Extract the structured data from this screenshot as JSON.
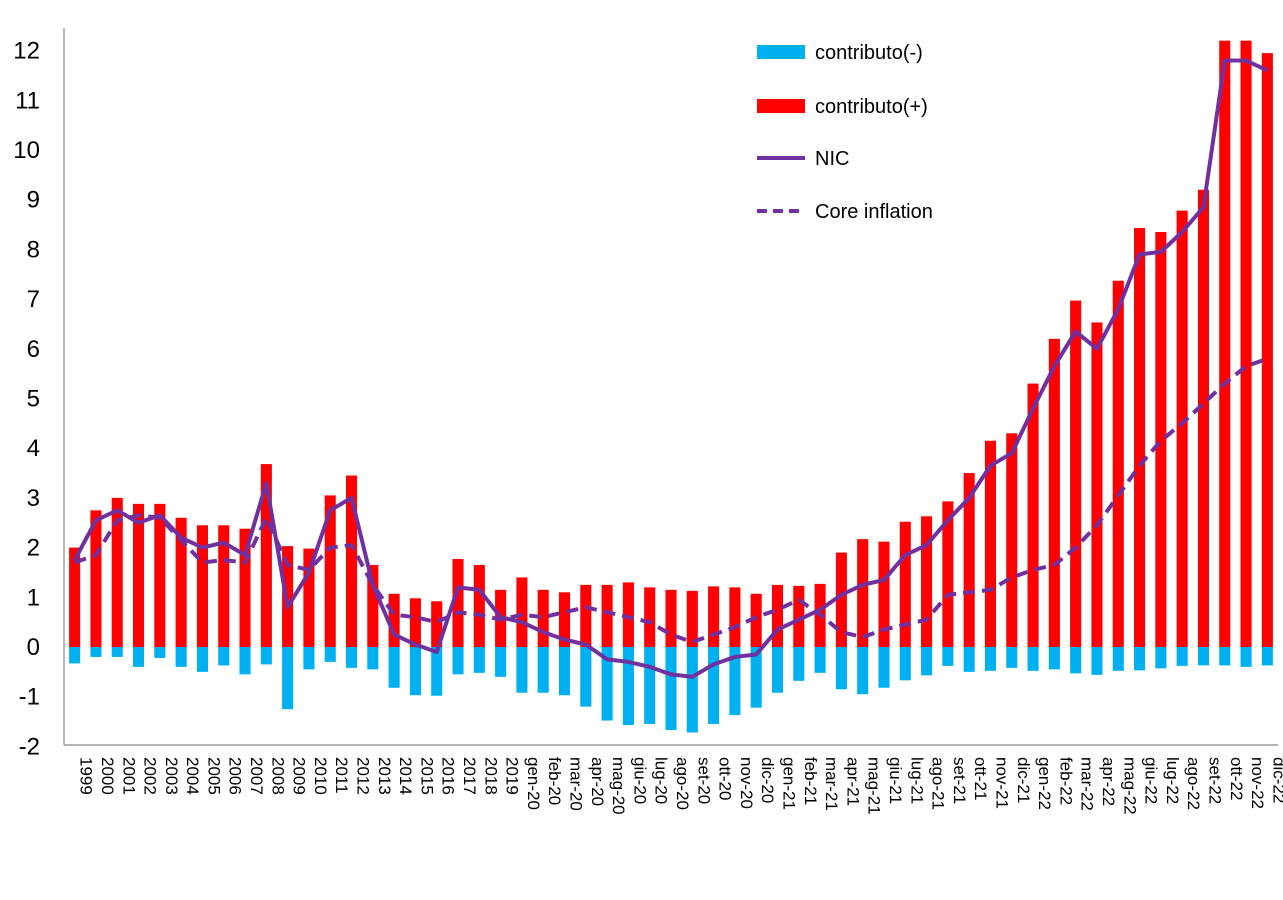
{
  "chart_data": {
    "type": "bar",
    "title": "",
    "xlabel": "",
    "ylabel": "",
    "ylim": [
      -2,
      12.4
    ],
    "yticks": [
      -2,
      -1,
      0,
      1,
      2,
      3,
      4,
      5,
      6,
      7,
      8,
      9,
      10,
      11,
      12
    ],
    "grid": false,
    "legend": "top-right",
    "categories": [
      "1999",
      "2000",
      "2001",
      "2002",
      "2003",
      "2004",
      "2005",
      "2006",
      "2007",
      "2008",
      "2009",
      "2010",
      "2011",
      "2012",
      "2013",
      "2014",
      "2015",
      "2016",
      "2017",
      "2018",
      "2019",
      "gen-20",
      "feb-20",
      "mar-20",
      "apr-20",
      "mag-20",
      "giu-20",
      "lug-20",
      "ago-20",
      "set-20",
      "ott-20",
      "nov-20",
      "dic-20",
      "gen-21",
      "feb-21",
      "mar-21",
      "apr-21",
      "mag-21",
      "giu-21",
      "lug-21",
      "ago-21",
      "set-21",
      "ott-21",
      "nov-21",
      "dic-21",
      "gen-22",
      "feb-22",
      "mar-22",
      "apr-22",
      "mag-22",
      "giu-22",
      "lug-22",
      "ago-22",
      "set-22",
      "ott-22",
      "nov-22",
      "dic-22"
    ],
    "series": [
      {
        "name": "contributo(-)",
        "kind": "bar",
        "color": "#00B0F0",
        "values": [
          -0.33,
          -0.2,
          -0.2,
          -0.4,
          -0.22,
          -0.4,
          -0.5,
          -0.37,
          -0.55,
          -0.35,
          -1.25,
          -0.45,
          -0.3,
          -0.42,
          -0.45,
          -0.82,
          -0.97,
          -0.98,
          -0.55,
          -0.52,
          -0.6,
          -0.92,
          -0.92,
          -0.97,
          -1.2,
          -1.48,
          -1.57,
          -1.55,
          -1.67,
          -1.72,
          -1.55,
          -1.37,
          -1.22,
          -0.92,
          -0.68,
          -0.52,
          -0.85,
          -0.95,
          -0.82,
          -0.67,
          -0.57,
          -0.38,
          -0.5,
          -0.48,
          -0.42,
          -0.48,
          -0.45,
          -0.53,
          -0.56,
          -0.48,
          -0.47,
          -0.43,
          -0.38,
          -0.37,
          -0.37,
          -0.4,
          -0.37
        ]
      },
      {
        "name": "contributo(+)",
        "kind": "bar",
        "color": "#FF0000",
        "values": [
          2.0,
          2.75,
          3.0,
          2.88,
          2.88,
          2.6,
          2.45,
          2.45,
          2.38,
          3.68,
          2.03,
          1.98,
          3.05,
          3.45,
          1.65,
          1.07,
          0.98,
          0.92,
          1.77,
          1.65,
          1.15,
          1.4,
          1.15,
          1.1,
          1.25,
          1.25,
          1.3,
          1.2,
          1.15,
          1.13,
          1.22,
          1.2,
          1.07,
          1.25,
          1.23,
          1.27,
          1.9,
          2.17,
          2.12,
          2.52,
          2.63,
          2.93,
          3.5,
          4.15,
          4.3,
          5.3,
          6.2,
          6.97,
          6.53,
          7.37,
          8.43,
          8.35,
          8.78,
          9.2,
          12.2,
          12.2,
          11.95
        ]
      },
      {
        "name": "NIC",
        "kind": "line",
        "color": "#7030A0",
        "values": [
          1.75,
          2.55,
          2.75,
          2.5,
          2.65,
          2.2,
          2.0,
          2.1,
          1.85,
          3.3,
          0.8,
          1.5,
          2.75,
          3.0,
          1.25,
          0.25,
          0.05,
          -0.1,
          1.2,
          1.15,
          0.6,
          0.5,
          0.3,
          0.15,
          0.05,
          -0.25,
          -0.3,
          -0.4,
          -0.55,
          -0.6,
          -0.35,
          -0.2,
          -0.15,
          0.35,
          0.55,
          0.75,
          1.05,
          1.25,
          1.35,
          1.85,
          2.05,
          2.55,
          3.0,
          3.65,
          3.9,
          4.8,
          5.65,
          6.35,
          6.0,
          6.8,
          7.9,
          7.95,
          8.35,
          8.85,
          11.8,
          11.8,
          11.6
        ]
      },
      {
        "name": "Core inflation",
        "kind": "line",
        "dashed": true,
        "color": "#7030A0",
        "values": [
          1.7,
          1.85,
          2.55,
          2.65,
          2.6,
          2.15,
          1.7,
          1.75,
          1.7,
          2.6,
          1.65,
          1.55,
          2.0,
          2.05,
          1.25,
          0.65,
          0.6,
          0.5,
          0.7,
          0.65,
          0.55,
          0.65,
          0.6,
          0.7,
          0.8,
          0.7,
          0.6,
          0.5,
          0.25,
          0.1,
          0.25,
          0.4,
          0.6,
          0.75,
          0.95,
          0.65,
          0.3,
          0.2,
          0.35,
          0.45,
          0.55,
          1.05,
          1.1,
          1.15,
          1.4,
          1.55,
          1.65,
          2.0,
          2.45,
          3.05,
          3.65,
          4.15,
          4.5,
          4.9,
          5.3,
          5.65,
          5.8
        ]
      }
    ]
  }
}
